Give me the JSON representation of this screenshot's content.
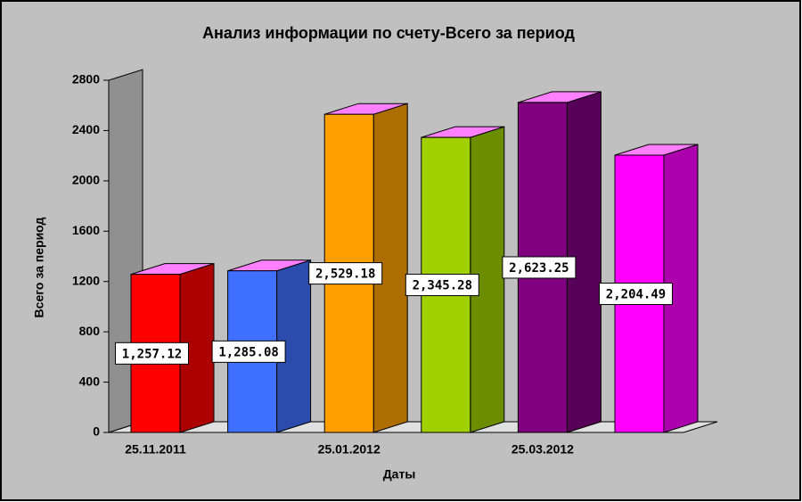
{
  "chart_data": {
    "type": "bar",
    "title": "Анализ информации по счету-Всего за период",
    "x_label": "Даты",
    "y_label": "Всего за период",
    "categories": [
      "25.11.2011",
      null,
      "25.01.2012",
      null,
      "25.03.2012",
      null
    ],
    "values": [
      1257.12,
      1285.08,
      2529.18,
      2345.28,
      2623.25,
      2204.49
    ],
    "value_labels": [
      "1,257.12",
      "1,285.08",
      "2,529.18",
      "2,345.28",
      "2,623.25",
      "2,204.49"
    ],
    "colors": [
      "#ff0000",
      "#4070ff",
      "#ffa000",
      "#a0d000",
      "#800080",
      "#ff00ff"
    ],
    "ylim": [
      0,
      2800
    ],
    "yticks": [
      0,
      400,
      800,
      1200,
      1600,
      2000,
      2400,
      2800
    ]
  }
}
